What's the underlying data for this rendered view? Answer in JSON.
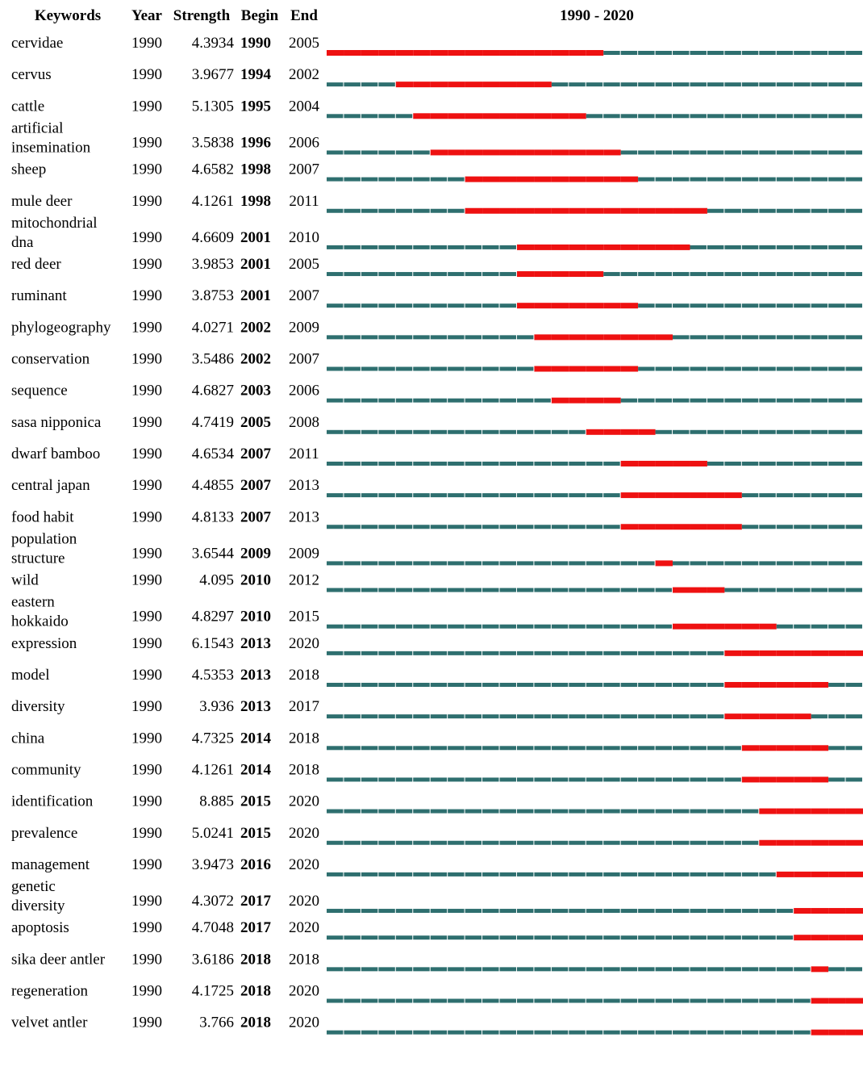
{
  "chart_data": {
    "type": "table",
    "headers": {
      "keywords": "Keywords",
      "year": "Year",
      "strength": "Strength",
      "begin": "Begin",
      "end": "End",
      "range": "1990 - 2020"
    },
    "timeline": {
      "start": 1990,
      "end": 2020
    },
    "colors": {
      "timeline": "#2e6f6f",
      "burst": "#ee1111"
    },
    "rows": [
      {
        "keyword": [
          "cervidae"
        ],
        "year": "1990",
        "strength": "4.3934",
        "begin": "1990",
        "end": "2005"
      },
      {
        "keyword": [
          "cervus"
        ],
        "year": "1990",
        "strength": "3.9677",
        "begin": "1994",
        "end": "2002"
      },
      {
        "keyword": [
          "cattle"
        ],
        "year": "1990",
        "strength": "5.1305",
        "begin": "1995",
        "end": "2004"
      },
      {
        "keyword": [
          "artificial",
          "insemination"
        ],
        "year": "1990",
        "strength": "3.5838",
        "begin": "1996",
        "end": "2006"
      },
      {
        "keyword": [
          "sheep"
        ],
        "year": "1990",
        "strength": "4.6582",
        "begin": "1998",
        "end": "2007"
      },
      {
        "keyword": [
          "mule deer"
        ],
        "year": "1990",
        "strength": "4.1261",
        "begin": "1998",
        "end": "2011"
      },
      {
        "keyword": [
          "mitochondrial",
          "dna"
        ],
        "year": "1990",
        "strength": "4.6609",
        "begin": "2001",
        "end": "2010"
      },
      {
        "keyword": [
          "red deer"
        ],
        "year": "1990",
        "strength": "3.9853",
        "begin": "2001",
        "end": "2005"
      },
      {
        "keyword": [
          "ruminant"
        ],
        "year": "1990",
        "strength": "3.8753",
        "begin": "2001",
        "end": "2007"
      },
      {
        "keyword": [
          "phylogeography"
        ],
        "year": "1990",
        "strength": "4.0271",
        "begin": "2002",
        "end": "2009"
      },
      {
        "keyword": [
          "conservation"
        ],
        "year": "1990",
        "strength": "3.5486",
        "begin": "2002",
        "end": "2007"
      },
      {
        "keyword": [
          "sequence"
        ],
        "year": "1990",
        "strength": "4.6827",
        "begin": "2003",
        "end": "2006"
      },
      {
        "keyword": [
          "sasa nipponica"
        ],
        "year": "1990",
        "strength": "4.7419",
        "begin": "2005",
        "end": "2008"
      },
      {
        "keyword": [
          "dwarf bamboo"
        ],
        "year": "1990",
        "strength": "4.6534",
        "begin": "2007",
        "end": "2011"
      },
      {
        "keyword": [
          "central japan"
        ],
        "year": "1990",
        "strength": "4.4855",
        "begin": "2007",
        "end": "2013"
      },
      {
        "keyword": [
          "food habit"
        ],
        "year": "1990",
        "strength": "4.8133",
        "begin": "2007",
        "end": "2013"
      },
      {
        "keyword": [
          "population",
          "structure"
        ],
        "year": "1990",
        "strength": "3.6544",
        "begin": "2009",
        "end": "2009"
      },
      {
        "keyword": [
          "wild"
        ],
        "year": "1990",
        "strength": "4.095",
        "begin": "2010",
        "end": "2012"
      },
      {
        "keyword": [
          "eastern",
          "hokkaido"
        ],
        "year": "1990",
        "strength": "4.8297",
        "begin": "2010",
        "end": "2015"
      },
      {
        "keyword": [
          "expression"
        ],
        "year": "1990",
        "strength": "6.1543",
        "begin": "2013",
        "end": "2020"
      },
      {
        "keyword": [
          "model"
        ],
        "year": "1990",
        "strength": "4.5353",
        "begin": "2013",
        "end": "2018"
      },
      {
        "keyword": [
          "diversity"
        ],
        "year": "1990",
        "strength": "3.936",
        "begin": "2013",
        "end": "2017"
      },
      {
        "keyword": [
          "china"
        ],
        "year": "1990",
        "strength": "4.7325",
        "begin": "2014",
        "end": "2018"
      },
      {
        "keyword": [
          "community"
        ],
        "year": "1990",
        "strength": "4.1261",
        "begin": "2014",
        "end": "2018"
      },
      {
        "keyword": [
          "identification"
        ],
        "year": "1990",
        "strength": "8.885",
        "begin": "2015",
        "end": "2020"
      },
      {
        "keyword": [
          "prevalence"
        ],
        "year": "1990",
        "strength": "5.0241",
        "begin": "2015",
        "end": "2020"
      },
      {
        "keyword": [
          "management"
        ],
        "year": "1990",
        "strength": "3.9473",
        "begin": "2016",
        "end": "2020"
      },
      {
        "keyword": [
          "genetic",
          "diversity"
        ],
        "year": "1990",
        "strength": "4.3072",
        "begin": "2017",
        "end": "2020"
      },
      {
        "keyword": [
          "apoptosis"
        ],
        "year": "1990",
        "strength": "4.7048",
        "begin": "2017",
        "end": "2020"
      },
      {
        "keyword": [
          "sika deer antler"
        ],
        "year": "1990",
        "strength": "3.6186",
        "begin": "2018",
        "end": "2018"
      },
      {
        "keyword": [
          "regeneration"
        ],
        "year": "1990",
        "strength": "4.1725",
        "begin": "2018",
        "end": "2020"
      },
      {
        "keyword": [
          "velvet antler"
        ],
        "year": "1990",
        "strength": "3.766",
        "begin": "2018",
        "end": "2020"
      }
    ]
  }
}
